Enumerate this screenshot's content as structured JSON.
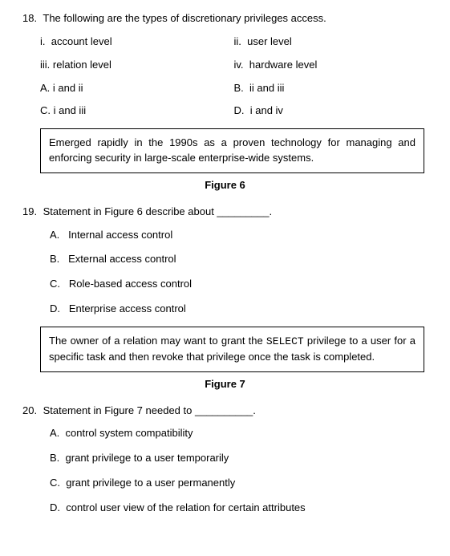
{
  "q18": {
    "number": "18.",
    "text": "The following are the types of discretionary privileges access.",
    "sub": {
      "i": {
        "label": "i.",
        "text": "account level"
      },
      "ii": {
        "label": "ii.",
        "text": "user level"
      },
      "iii": {
        "label": "iii.",
        "text": "relation level"
      },
      "iv": {
        "label": "iv.",
        "text": "hardware level"
      }
    },
    "opts": {
      "A": {
        "label": "A.",
        "text": "i and ii"
      },
      "B": {
        "label": "B.",
        "text": "ii and iii"
      },
      "C": {
        "label": "C.",
        "text": "i and iii"
      },
      "D": {
        "label": "D.",
        "text": "i and iv"
      }
    }
  },
  "figure6": {
    "text": "Emerged rapidly in the 1990s as a proven technology for managing and enforcing security in large-scale enterprise-wide systems.",
    "caption": "Figure 6"
  },
  "q19": {
    "number": "19.",
    "text_pre": "Statement in Figure 6 describe about ",
    "blank": "_________",
    "text_post": ".",
    "opts": {
      "A": {
        "label": "A.",
        "text": "Internal access control"
      },
      "B": {
        "label": "B.",
        "text": "External access control"
      },
      "C": {
        "label": "C.",
        "text": "Role-based access control"
      },
      "D": {
        "label": "D.",
        "text": "Enterprise access control"
      }
    }
  },
  "figure7": {
    "text_pre": "The owner of a relation may want to grant the ",
    "code": "SELECT",
    "text_post": " privilege to a user for a specific task and then revoke that privilege once the task is completed.",
    "caption": "Figure 7"
  },
  "q20": {
    "number": "20.",
    "text_pre": "Statement in Figure 7 needed to ",
    "blank": "__________",
    "text_post": ".",
    "opts": {
      "A": {
        "label": "A.",
        "text": "control system compatibility"
      },
      "B": {
        "label": "B.",
        "text": "grant privilege to a user temporarily"
      },
      "C": {
        "label": "C.",
        "text": "grant privilege to a user permanently"
      },
      "D": {
        "label": "D.",
        "text": "control user view of the relation for certain attributes"
      }
    }
  }
}
